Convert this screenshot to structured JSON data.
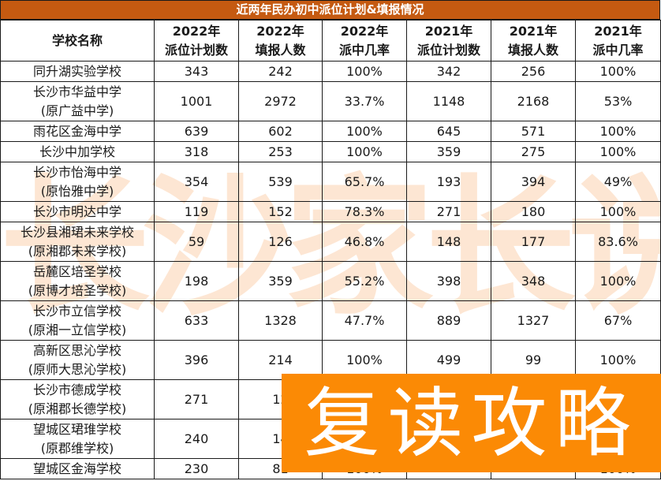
{
  "title": "近两年民办初中派位计划&填报情况",
  "columns": [
    {
      "line1": "学校名称",
      "line2": ""
    },
    {
      "line1": "2022年",
      "line2": "派位计划数"
    },
    {
      "line1": "2022年",
      "line2": "填报人数"
    },
    {
      "line1": "2022年",
      "line2": "派中几率"
    },
    {
      "line1": "2021年",
      "line2": "派位计划数"
    },
    {
      "line1": "2021年",
      "line2": "填报人数"
    },
    {
      "line1": "2021年",
      "line2": "派中几率"
    }
  ],
  "rows": [
    {
      "name1": "同升湖实验学校",
      "name2": "",
      "plan2022": "343",
      "applicants2022": "242",
      "rate2022": "100%",
      "plan2021": "342",
      "applicants2021": "256",
      "rate2021": "100%"
    },
    {
      "name1": "长沙市华益中学",
      "name2": "(原广益中学)",
      "plan2022": "1001",
      "applicants2022": "2972",
      "rate2022": "33.7%",
      "plan2021": "1148",
      "applicants2021": "2168",
      "rate2021": "53%"
    },
    {
      "name1": "雨花区金海中学",
      "name2": "",
      "plan2022": "639",
      "applicants2022": "602",
      "rate2022": "100%",
      "plan2021": "645",
      "applicants2021": "571",
      "rate2021": "100%"
    },
    {
      "name1": "长沙中加学校",
      "name2": "",
      "plan2022": "318",
      "applicants2022": "253",
      "rate2022": "100%",
      "plan2021": "359",
      "applicants2021": "275",
      "rate2021": "100%"
    },
    {
      "name1": "长沙市怡海中学",
      "name2": "(原怡雅中学)",
      "plan2022": "354",
      "applicants2022": "539",
      "rate2022": "65.7%",
      "plan2021": "193",
      "applicants2021": "394",
      "rate2021": "49%"
    },
    {
      "name1": "长沙市明达中学",
      "name2": "",
      "plan2022": "119",
      "applicants2022": "152",
      "rate2022": "78.3%",
      "plan2021": "271",
      "applicants2021": "180",
      "rate2021": "100%"
    },
    {
      "name1": "长沙县湘珺未来学校",
      "name2": "(原湘郡未来学校)",
      "plan2022": "59",
      "applicants2022": "126",
      "rate2022": "46.8%",
      "plan2021": "148",
      "applicants2021": "177",
      "rate2021": "83.6%"
    },
    {
      "name1": "岳麓区培圣学校",
      "name2": "(原博才培圣学校)",
      "plan2022": "198",
      "applicants2022": "359",
      "rate2022": "55.2%",
      "plan2021": "398",
      "applicants2021": "348",
      "rate2021": "100%"
    },
    {
      "name1": "长沙市立信学校",
      "name2": "(原湘一立信学校)",
      "plan2022": "633",
      "applicants2022": "1328",
      "rate2022": "47.7%",
      "plan2021": "889",
      "applicants2021": "1327",
      "rate2021": "67%"
    },
    {
      "name1": "高新区思沁学校",
      "name2": "(原师大思沁学校)",
      "plan2022": "396",
      "applicants2022": "214",
      "rate2022": "100%",
      "plan2021": "499",
      "applicants2021": "99",
      "rate2021": "100%"
    },
    {
      "name1": "长沙市德成学校",
      "name2": "(原湘郡长德学校)",
      "plan2022": "271",
      "applicants2022": "12",
      "rate2022": "",
      "plan2021": "",
      "applicants2021": "",
      "rate2021": ""
    },
    {
      "name1": "望城区珺琟学校",
      "name2": "(原郡维学校)",
      "plan2022": "240",
      "applicants2022": "14",
      "rate2022": "",
      "plan2021": "",
      "applicants2021": "",
      "rate2021": ""
    },
    {
      "name1": "望城区金海学校",
      "name2": "",
      "plan2022": "230",
      "applicants2022": "81",
      "rate2022": "100%",
      "plan2021": "",
      "applicants2021": "",
      "rate2021": "100%"
    }
  ],
  "watermark": "长沙家长说",
  "overlay_banner": "复读攻略",
  "colors": {
    "title_bar": "#c55a11",
    "overlay": "#fb8a05",
    "watermark": "#fde6d3"
  }
}
